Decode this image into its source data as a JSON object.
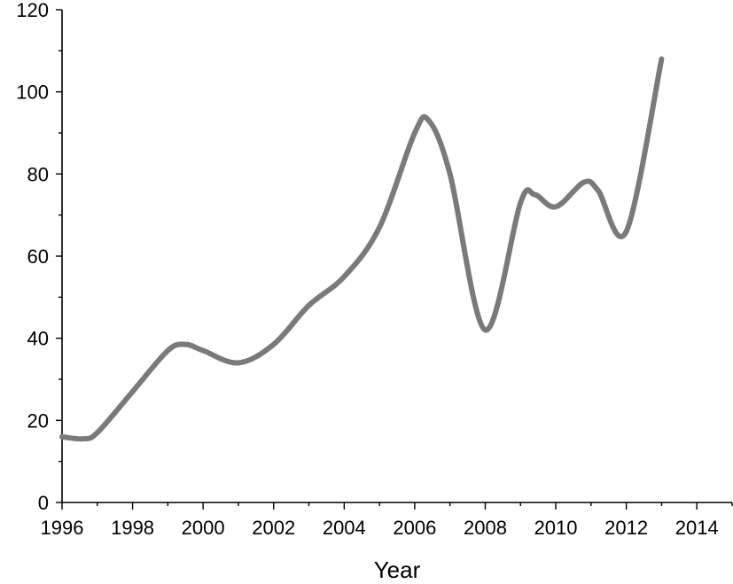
{
  "chart_data": {
    "type": "line",
    "title": "",
    "xlabel": "Year",
    "ylabel": "",
    "xlim": [
      1996,
      2015
    ],
    "ylim": [
      0,
      120
    ],
    "x_ticks": [
      "1996",
      "1998",
      "2000",
      "2002",
      "2004",
      "2006",
      "2008",
      "2010",
      "2012",
      "2014"
    ],
    "y_ticks": [
      "0",
      "20",
      "40",
      "60",
      "80",
      "100",
      "120"
    ],
    "grid": false,
    "legend": "none",
    "series": [
      {
        "color": "#7a7a7a",
        "x": [
          1996,
          1996.6,
          1997,
          1998,
          1999,
          1999.5,
          2000,
          2001,
          2002,
          2003,
          2004,
          2005,
          2006,
          2006.4,
          2007,
          2008,
          2009,
          2009.4,
          2010,
          2010.8,
          2011.2,
          2012,
          2013
        ],
        "y": [
          16,
          15.5,
          17,
          27,
          37,
          38.5,
          37,
          34,
          38.5,
          48,
          55,
          67,
          90,
          93,
          80,
          42,
          73,
          75,
          72,
          78,
          76,
          66,
          108
        ]
      }
    ]
  }
}
